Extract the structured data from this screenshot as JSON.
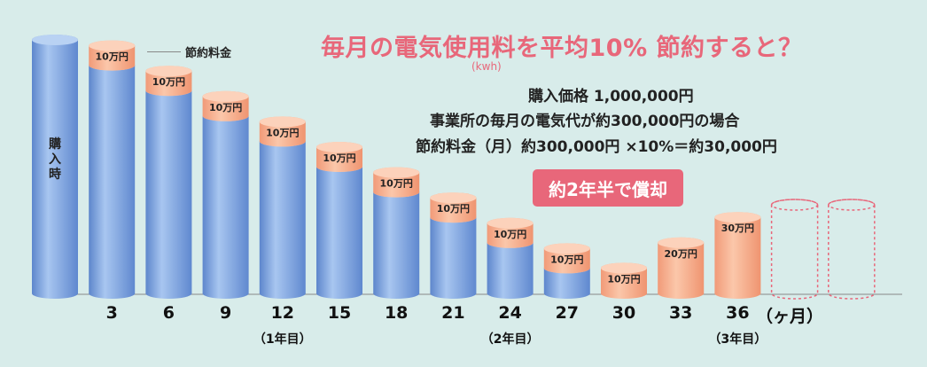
{
  "title": "毎月の電気使用料を平均10% 節約すると？",
  "unit_note": "(kwh)",
  "info": {
    "price": "購入価格 1,000,000円",
    "bill": "事業所の毎月の電気代が約300,000円の場合",
    "savings": "節約料金（月）約300,000円 ×10%＝約30,000円"
  },
  "badge": "約2年半で償却",
  "legend_label": "節約料金",
  "initial_label": "購入時",
  "x_suffix": "（ヶ月）",
  "colors": {
    "blue": "#7ea6e2",
    "salmon": "#f6a784",
    "accent": "#e8677a",
    "background": "#d8ecea"
  },
  "chart_data": {
    "type": "bar",
    "categories": [
      "購入時",
      "3",
      "6",
      "9",
      "12",
      "15",
      "18",
      "21",
      "24",
      "27",
      "30",
      "33",
      "36",
      "",
      ""
    ],
    "sub_labels": [
      "",
      "",
      "",
      "",
      "（1年目）",
      "",
      "",
      "",
      "（2年目）",
      "",
      "",
      "",
      "（3年目）",
      "",
      ""
    ],
    "series": [
      {
        "name": "",
        "values": [
          100,
          90,
          80,
          70,
          60,
          50,
          40,
          30,
          20,
          10,
          0,
          0,
          0,
          0,
          0
        ]
      },
      {
        "name": "節約料金",
        "values": [
          0,
          10,
          10,
          10,
          10,
          10,
          10,
          10,
          10,
          10,
          10,
          20,
          30,
          0,
          0
        ]
      }
    ],
    "bar_labels": [
      "",
      "10万円",
      "10万円",
      "10万円",
      "10万円",
      "10万円",
      "10万円",
      "10万円",
      "10万円",
      "10万円",
      "10万円",
      "20万円",
      "30万円",
      "",
      ""
    ],
    "ylim": [
      0,
      100
    ]
  }
}
